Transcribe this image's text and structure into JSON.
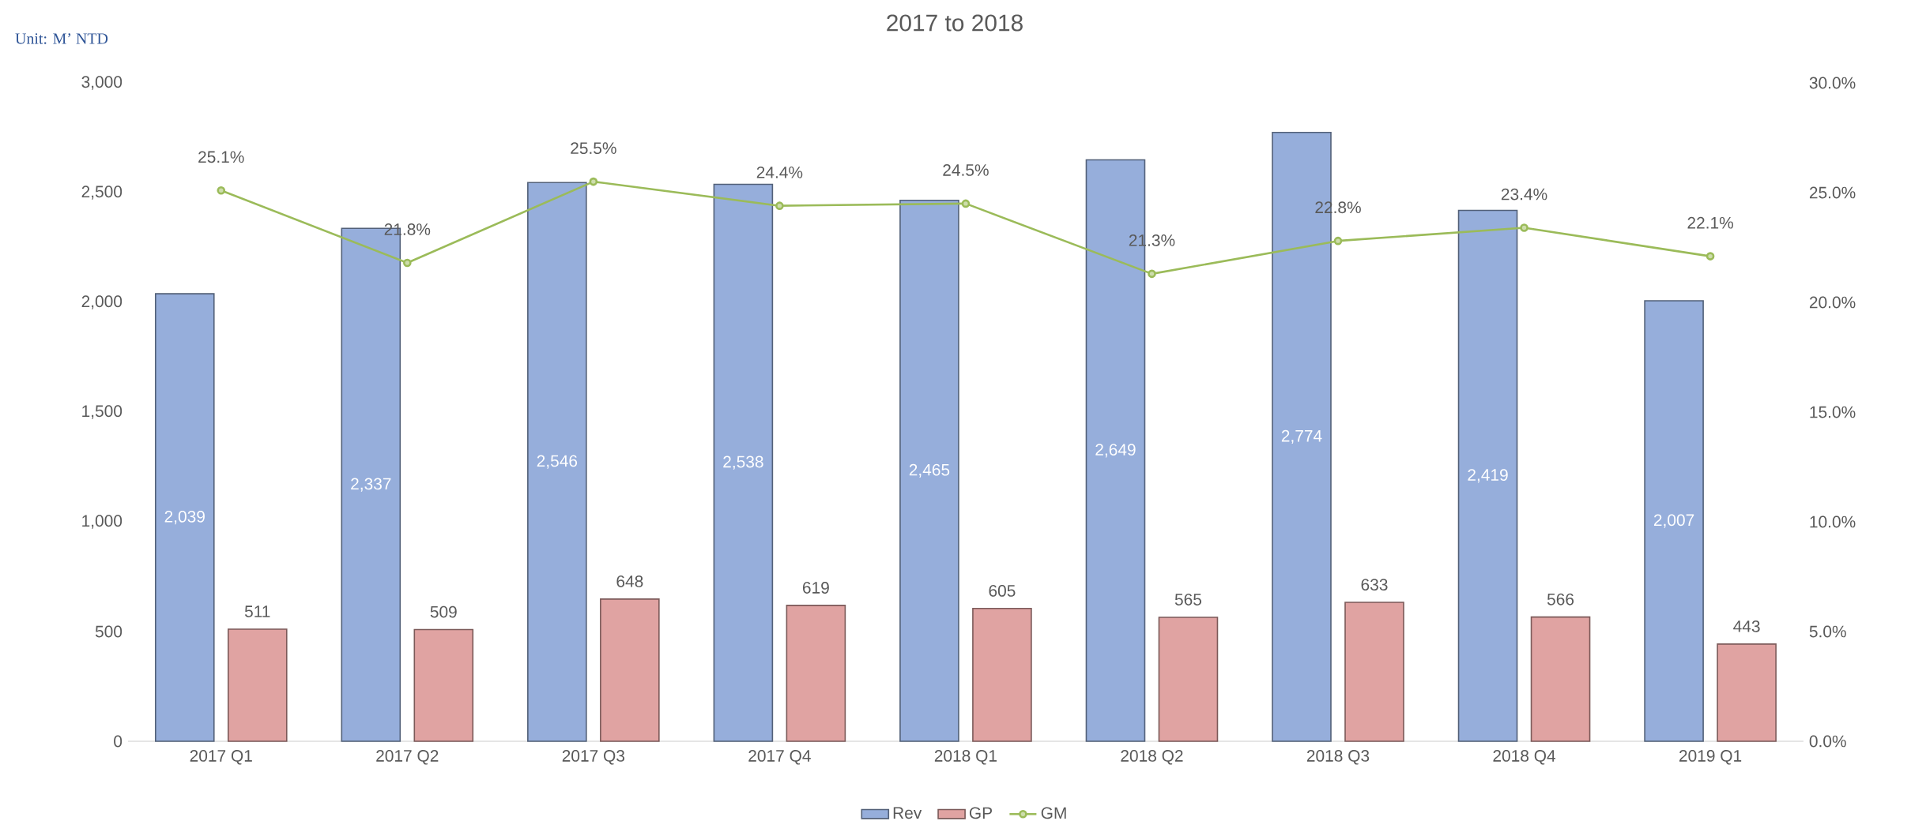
{
  "chart_data": {
    "type": "bar",
    "title": "2017 to 2018",
    "annotations": [
      "Unit: M’ NTD"
    ],
    "categories": [
      "2017 Q1",
      "2017 Q2",
      "2017 Q3",
      "2017 Q4",
      "2018 Q1",
      "2018 Q2",
      "2018 Q3",
      "2018 Q4",
      "2019 Q1"
    ],
    "series": [
      {
        "name": "Rev",
        "color": "#96aedb",
        "values": [
          2039,
          2337,
          2546,
          2538,
          2465,
          2649,
          2774,
          2419,
          2007
        ],
        "value_labels": [
          "2,039",
          "2,337",
          "2,546",
          "2,538",
          "2,465",
          "2,649",
          "2,774",
          "2,419",
          "2,007"
        ]
      },
      {
        "name": "GP",
        "color": "#e0a3a2",
        "values": [
          511,
          509,
          648,
          619,
          605,
          565,
          633,
          566,
          443
        ],
        "value_labels": [
          "511",
          "509",
          "648",
          "619",
          "605",
          "565",
          "633",
          "566",
          "443"
        ]
      },
      {
        "name": "GM",
        "type": "line",
        "axis": "y2",
        "color": "#9bbb59",
        "values": [
          25.1,
          21.8,
          25.5,
          24.4,
          24.5,
          21.3,
          22.8,
          23.4,
          22.1
        ],
        "value_labels": [
          "25.1%",
          "21.8%",
          "25.5%",
          "24.4%",
          "24.5%",
          "21.3%",
          "22.8%",
          "23.4%",
          "22.1%"
        ]
      }
    ],
    "ylim": [
      0,
      3000
    ],
    "yticks": [
      0,
      500,
      {
        "value": 1000,
        "label": "1,000"
      },
      {
        "value": 1500,
        "label": "1,500"
      },
      {
        "value": 2000,
        "label": "2,000"
      },
      {
        "value": 2500,
        "label": "2,500"
      },
      {
        "value": 3000,
        "label": "3,000"
      }
    ],
    "y2lim": [
      0,
      30
    ],
    "y2ticks": [
      {
        "value": 0,
        "label": "0.0%"
      },
      {
        "value": 5,
        "label": "5.0%"
      },
      {
        "value": 10,
        "label": "10.0%"
      },
      {
        "value": 15,
        "label": "15.0%"
      },
      {
        "value": 20,
        "label": "20.0%"
      },
      {
        "value": 25,
        "label": "25.0%"
      },
      {
        "value": 30,
        "label": "30.0%"
      }
    ],
    "legend": "bottom",
    "marker": "circle"
  }
}
